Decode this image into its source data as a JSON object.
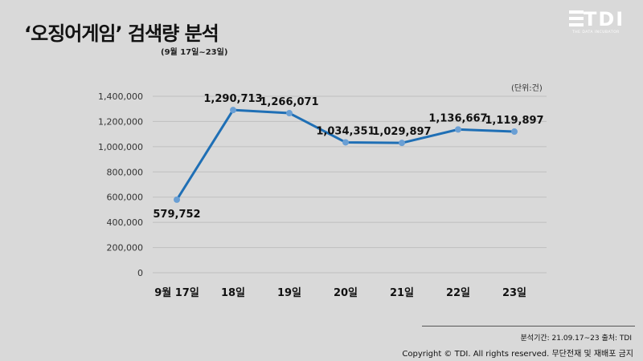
{
  "header": {
    "title": "‘오징어게임’ 검색량 분석",
    "subtitle": "(9월 17일~23일)"
  },
  "logo": {
    "text": "TDI",
    "tagline": "THE DATA INCUBATOR"
  },
  "footer": {
    "source_note": "분석기간: 21.09.17~23   출처: TDI",
    "copyright": "Copyright © TDI. All rights reserved. 무단전재 및 재배포 금지"
  },
  "colors": {
    "background": "#d9d9d9",
    "line": "#1f6fb5",
    "marker": "#6a9fd4",
    "grid": "#bfbfbf"
  },
  "chart_data": {
    "type": "line",
    "title": "‘오징어게임’ 검색량 분석",
    "unit_label": "(단위:건)",
    "categories": [
      "9월 17일",
      "18일",
      "19일",
      "20일",
      "21일",
      "22일",
      "23일"
    ],
    "values": [
      579752,
      1290713,
      1266071,
      1034351,
      1029897,
      1136667,
      1119897
    ],
    "data_labels": [
      "579,752",
      "1,290,713",
      "1,266,071",
      "1,034,351",
      "1,029,897",
      "1,136,667",
      "1,119,897"
    ],
    "ylim": [
      0,
      1400000
    ],
    "yticks": [
      0,
      200000,
      400000,
      600000,
      800000,
      1000000,
      1200000,
      1400000
    ],
    "ytick_labels": [
      "0",
      "200,000",
      "400,000",
      "600,000",
      "800,000",
      "1,000,000",
      "1,200,000",
      "1,400,000"
    ],
    "grid": true,
    "legend": "none"
  }
}
